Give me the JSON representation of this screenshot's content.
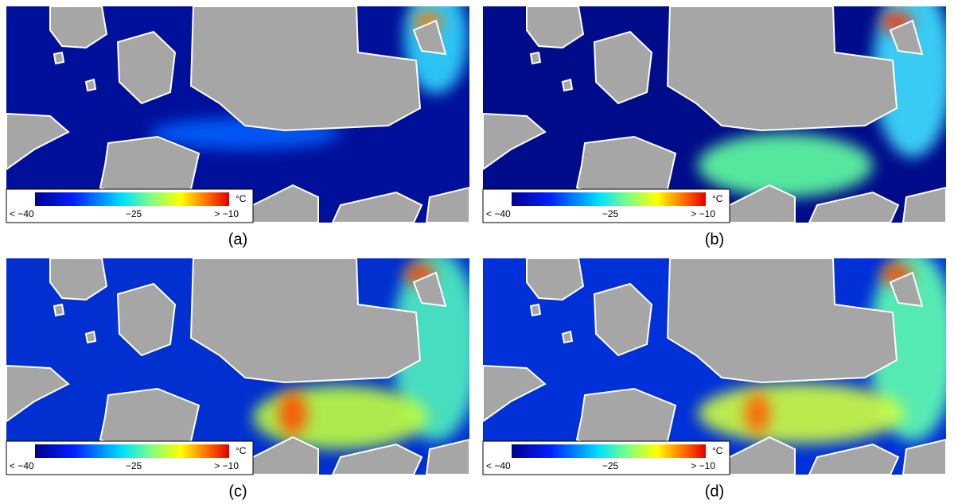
{
  "panels": [
    {
      "label": "(a)",
      "colorbar": {
        "unit": "°C",
        "ticks": [
          "< −40",
          "−25",
          "> −10"
        ]
      }
    },
    {
      "label": "(b)",
      "colorbar": {
        "unit": "°C",
        "ticks": [
          "< −40",
          "−25",
          "> −10"
        ]
      }
    },
    {
      "label": "(c)",
      "colorbar": {
        "unit": "°C",
        "ticks": [
          "< −40",
          "−25",
          "> −10"
        ]
      }
    },
    {
      "label": "(d)",
      "colorbar": {
        "unit": "°C",
        "ticks": [
          "< −40",
          "−25",
          "> −10"
        ]
      }
    }
  ]
}
